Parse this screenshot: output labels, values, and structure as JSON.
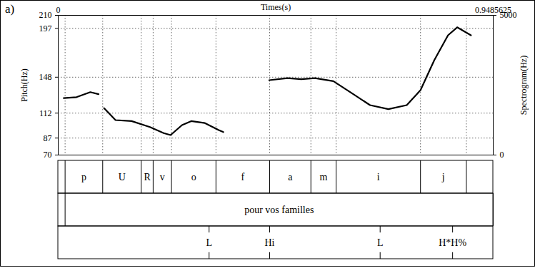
{
  "chart_data": {
    "type": "line",
    "panel_label": "a)",
    "xlabel": "Times(s)",
    "ylabel": "Pitch(Hz)",
    "y2label": "Spectrogram(Hz)",
    "xlim": [
      0,
      0.9485625
    ],
    "xticks": [
      0,
      0.9485625
    ],
    "ylim": [
      70,
      210
    ],
    "yticks": [
      70,
      87,
      112,
      148,
      197,
      210
    ],
    "y2lim": [
      0,
      5000
    ],
    "y2ticks": [
      0,
      5000
    ],
    "grid": true,
    "color": "#000000",
    "x": [
      0.012,
      0.04,
      0.07,
      0.088,
      0.094,
      0.1,
      0.125,
      0.16,
      0.2,
      0.23,
      0.245,
      0.27,
      0.29,
      0.32,
      0.35,
      0.36,
      0.4,
      0.46,
      0.5,
      0.53,
      0.56,
      0.6,
      0.64,
      0.68,
      0.72,
      0.76,
      0.79,
      0.82,
      0.85,
      0.87,
      0.9
    ],
    "values": [
      127,
      128,
      133,
      131,
      null,
      117,
      105,
      104,
      98,
      92,
      90,
      100,
      104,
      102,
      95,
      93,
      null,
      145,
      147,
      146,
      147,
      144,
      132,
      120,
      116,
      120,
      135,
      165,
      190,
      198,
      190
    ],
    "tiers": [
      {
        "type": "interval",
        "intervals": [
          {
            "start": 0.015,
            "end": 0.097,
            "text": "p"
          },
          {
            "start": 0.097,
            "end": 0.181,
            "text": "U"
          },
          {
            "start": 0.181,
            "end": 0.207,
            "text": "R"
          },
          {
            "start": 0.207,
            "end": 0.247,
            "text": "v"
          },
          {
            "start": 0.247,
            "end": 0.344,
            "text": "o"
          },
          {
            "start": 0.344,
            "end": 0.461,
            "text": "f"
          },
          {
            "start": 0.461,
            "end": 0.551,
            "text": "a"
          },
          {
            "start": 0.551,
            "end": 0.606,
            "text": "m"
          },
          {
            "start": 0.606,
            "end": 0.79,
            "text": "i"
          },
          {
            "start": 0.79,
            "end": 0.89,
            "text": "j"
          }
        ]
      },
      {
        "type": "interval",
        "intervals": [
          {
            "start": 0.015,
            "end": 0.9485625,
            "text": "pour vos familles"
          }
        ]
      },
      {
        "type": "point",
        "points": [
          {
            "time": 0.329,
            "text": "L"
          },
          {
            "time": 0.461,
            "text": "Hi"
          },
          {
            "time": 0.702,
            "text": "L"
          },
          {
            "time": 0.86,
            "text": "H*H%"
          }
        ]
      }
    ]
  }
}
